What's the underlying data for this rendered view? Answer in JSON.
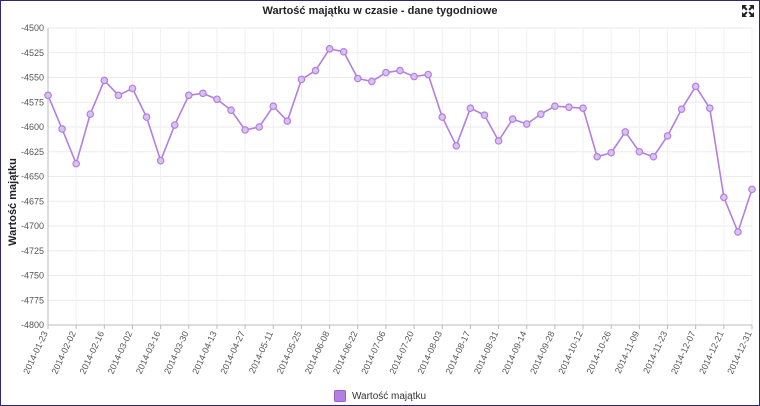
{
  "chart_data": {
    "type": "line",
    "title": "Wartość majątku w czasie - dane tygodniowe",
    "ylabel": "Wartość majątku",
    "xlabel": "",
    "ylim": [
      -4800,
      -4500
    ],
    "yticks": [
      -4500,
      -4525,
      -4550,
      -4575,
      -4600,
      -4625,
      -4650,
      -4675,
      -4700,
      -4725,
      -4750,
      -4775,
      -4800
    ],
    "grid": true,
    "legend_position": "bottom",
    "line_color": "#b37fe0",
    "xtick_labels": [
      "2014-01-23",
      "2014-02-02",
      "2014-02-16",
      "2014-03-02",
      "2014-03-16",
      "2014-03-30",
      "2014-04-13",
      "2014-04-27",
      "2014-05-11",
      "2014-05-25",
      "2014-06-08",
      "2014-06-22",
      "2014-07-06",
      "2014-07-20",
      "2014-08-03",
      "2014-08-17",
      "2014-08-31",
      "2014-09-14",
      "2014-09-28",
      "2014-10-12",
      "2014-10-26",
      "2014-11-09",
      "2014-11-23",
      "2014-12-07",
      "2014-12-21",
      "2014-12-31"
    ],
    "series": [
      {
        "name": "Wartość majątku",
        "values": [
          -4568,
          -4602,
          -4637,
          -4587,
          -4553,
          -4568,
          -4561,
          -4590,
          -4634,
          -4598,
          -4568,
          -4566,
          -4572,
          -4583,
          -4603,
          -4600,
          -4579,
          -4594,
          -4552,
          -4543,
          -4521,
          -4524,
          -4551,
          -4554,
          -4545,
          -4543,
          -4549,
          -4547,
          -4590,
          -4619,
          -4581,
          -4588,
          -4614,
          -4592,
          -4597,
          -4587,
          -4579,
          -4580,
          -4581,
          -4630,
          -4626,
          -4605,
          -4625,
          -4630,
          -4609,
          -4582,
          -4559,
          -4581,
          -4671,
          -4706,
          -4663
        ]
      }
    ]
  },
  "ui": {
    "expand_icon": "expand-arrows-icon"
  }
}
